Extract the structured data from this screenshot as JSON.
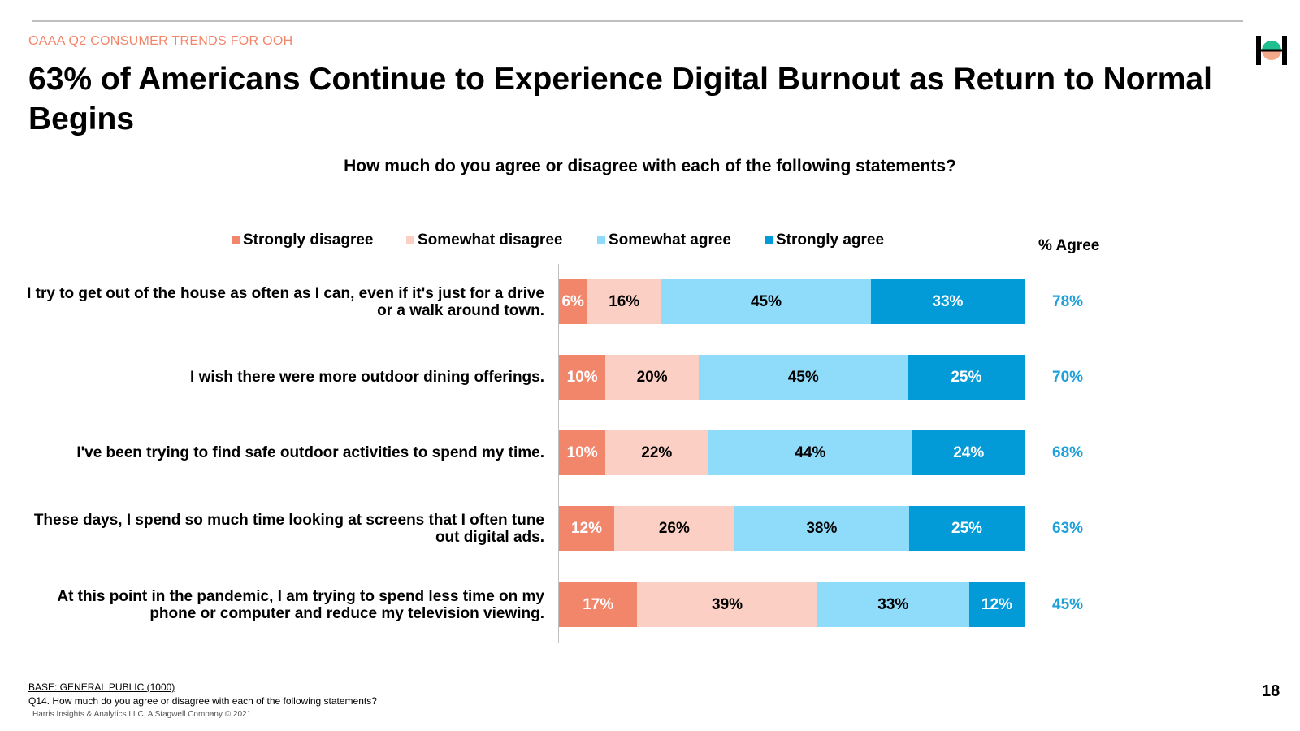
{
  "header": {
    "kicker": "OAAA Q2 CONSUMER TRENDS FOR OOH",
    "title": "63% of Americans Continue to Experience Digital Burnout as Return to Normal Begins"
  },
  "colors": {
    "strongly_disagree": "#f2866b",
    "somewhat_disagree": "#fbcfc3",
    "somewhat_agree": "#8fdcfa",
    "strongly_agree": "#039ad8",
    "agree_text": "#1ea0d9",
    "kicker": "#f2866b"
  },
  "chart_data": {
    "type": "bar",
    "orientation": "horizontal",
    "stacked": true,
    "title": "How much do you agree or disagree with each of the following statements?",
    "categories": [
      "I try to get out of the house as often as I can, even if it's just for a drive or a walk around town.",
      "I wish there were more outdoor dining offerings.",
      "I've been trying to find safe outdoor activities to spend my time.",
      "These days, I spend so much time looking at screens that I often tune out digital ads.",
      "At this point in the pandemic, I am trying to spend less time on my phone or computer and reduce my television viewing."
    ],
    "series": [
      {
        "name": "Strongly disagree",
        "values": [
          6,
          10,
          10,
          12,
          17
        ]
      },
      {
        "name": "Somewhat disagree",
        "values": [
          16,
          20,
          22,
          26,
          39
        ]
      },
      {
        "name": "Somewhat agree",
        "values": [
          45,
          45,
          44,
          38,
          33
        ]
      },
      {
        "name": "Strongly agree",
        "values": [
          33,
          25,
          24,
          25,
          12
        ]
      }
    ],
    "agree_header": "% Agree",
    "agree_totals": [
      78,
      70,
      68,
      63,
      45
    ],
    "xlim": [
      0,
      100
    ],
    "legend_position": "top"
  },
  "footer": {
    "base": "BASE: GENERAL PUBLIC (1000)",
    "question_note": "Q14. How much do you agree or disagree with each of the following statements?",
    "copyright": "Harris Insights & Analytics LLC, A Stagwell Company © 2021",
    "page_number": "18"
  }
}
